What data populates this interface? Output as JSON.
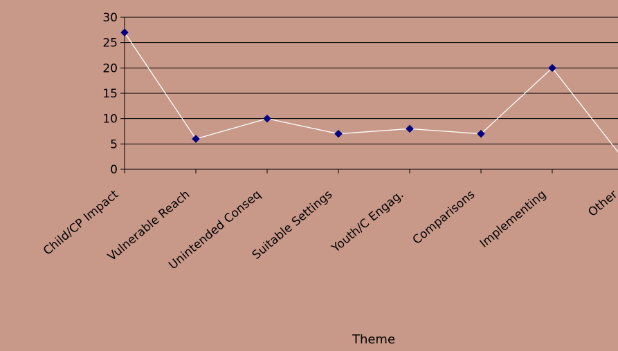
{
  "chart_data": {
    "type": "line",
    "categories": [
      "Child/CP Impact",
      "Vulnerable Reach",
      "Unintended Conseq",
      "Suitable Settings",
      "Youth/C Engag.",
      "Comparisons",
      "Implementing",
      "Other"
    ],
    "values": [
      27,
      6,
      10,
      7,
      8,
      7,
      20,
      2
    ],
    "xlabel": "Theme",
    "ylabel": "",
    "ylim": [
      0,
      30
    ],
    "yticks": [
      0,
      5,
      10,
      15,
      20,
      25,
      30
    ],
    "grid": true,
    "legend": "none",
    "line_color": "#ffffff",
    "marker_color": "#000080",
    "background_color": "#c89888",
    "gridline_color": "#000000"
  }
}
